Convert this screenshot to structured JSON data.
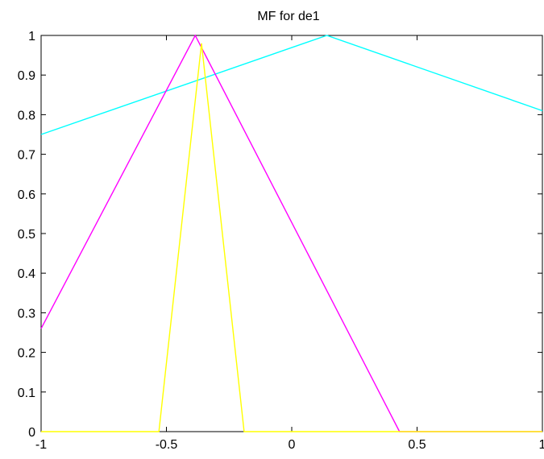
{
  "chart_data": {
    "type": "line",
    "title": "MF for de1",
    "xlabel": "",
    "ylabel": "",
    "xlim": [
      -1,
      1
    ],
    "ylim": [
      0,
      1
    ],
    "grid": false,
    "x_ticks": [
      "-1",
      "-0.5",
      "0",
      "0.5",
      "1"
    ],
    "y_ticks": [
      "0",
      "0.1",
      "0.2",
      "0.3",
      "0.4",
      "0.5",
      "0.6",
      "0.7",
      "0.8",
      "0.9",
      "1"
    ],
    "series": [
      {
        "color": "#00ffff",
        "x": [
          -1,
          0.14,
          1
        ],
        "y": [
          0.75,
          1,
          0.81
        ]
      },
      {
        "color": "#ff00ff",
        "x": [
          -1,
          -0.385,
          0.43,
          1
        ],
        "y": [
          0.26,
          1,
          0,
          0
        ]
      },
      {
        "color": "#ffff00",
        "x": [
          -1,
          -0.53,
          -0.36,
          -0.19,
          1
        ],
        "y": [
          0,
          0,
          0.98,
          0,
          0
        ]
      }
    ]
  }
}
